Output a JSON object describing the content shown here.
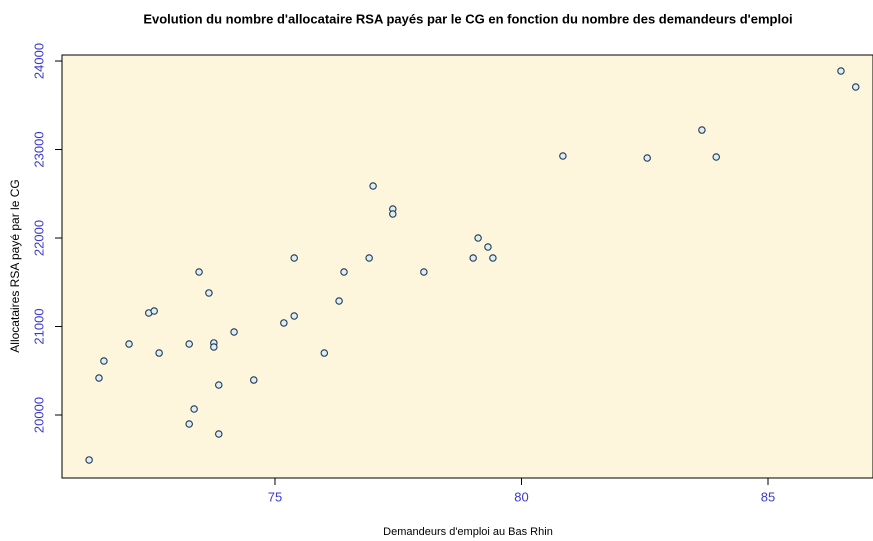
{
  "chart_data": {
    "type": "scatter",
    "title": "Evolution du nombre d'allocataire RSA payés par le CG en fonction du nombre des demandeurs d'emploi",
    "xlabel": "Demandeurs d'emploi au Bas Rhin",
    "ylabel": "Allocataires RSA payé par le CG",
    "x": [
      71.23,
      71.43,
      71.53,
      72.04,
      72.44,
      72.55,
      72.65,
      73.46,
      73.26,
      73.36,
      73.26,
      73.66,
      73.76,
      73.76,
      73.86,
      73.86,
      74.17,
      74.57,
      75.18,
      75.39,
      75.39,
      76.0,
      76.3,
      76.4,
      76.91,
      76.99,
      77.39,
      77.39,
      78.02,
      79.02,
      79.12,
      79.32,
      79.42,
      80.84,
      82.55,
      83.66,
      83.95,
      86.48,
      86.78
    ],
    "y": [
      19492,
      20418,
      20610,
      20802,
      21153,
      21175,
      20700,
      21616,
      20802,
      20068,
      19898,
      21379,
      20814,
      20768,
      20339,
      19785,
      20938,
      20395,
      21040,
      21119,
      21774,
      20700,
      21288,
      21616,
      21774,
      22588,
      22328,
      22271,
      21616,
      21774,
      22000,
      21898,
      21774,
      22927,
      22904,
      23220,
      22915,
      23887,
      23706
    ],
    "color": "#1f3a5a",
    "background": "#fdf5dc",
    "xlim": [
      70.68,
      87.13
    ],
    "ylim": [
      19288,
      24068
    ],
    "xticks": [
      75,
      80,
      85
    ],
    "yticks": [
      20000,
      21000,
      22000,
      23000,
      24000
    ]
  }
}
